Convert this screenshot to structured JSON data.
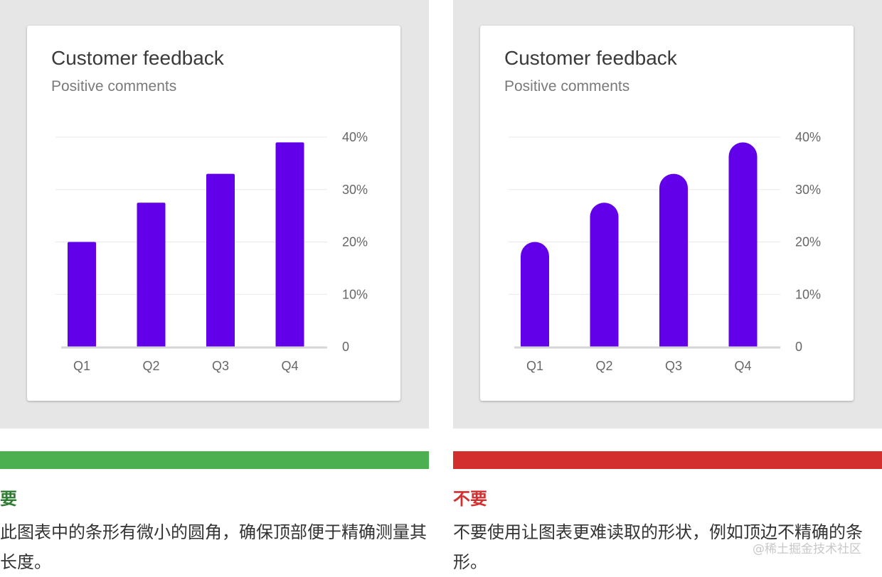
{
  "colors": {
    "panel_bg": "#e6e6e6",
    "bar": "#6200ea",
    "do": "#4caf50",
    "do_text": "#2e7d32",
    "dont": "#d32f2f",
    "dont_text": "#d32f2f"
  },
  "do_example": {
    "verdict": "要",
    "caption": "此图表中的条形有微小的圆角，确保顶部便于精确测量其长度。"
  },
  "dont_example": {
    "verdict": "不要",
    "caption": "不要使用让图表更难读取的形状，例如顶边不精确的条形。"
  },
  "watermark": "@稀土掘金技术社区",
  "chart_data": [
    {
      "type": "bar",
      "title": "Customer feedback",
      "subtitle": "Positive comments",
      "categories": [
        "Q1",
        "Q2",
        "Q3",
        "Q4"
      ],
      "values": [
        20,
        27.5,
        33,
        39
      ],
      "ylim": [
        0,
        40
      ],
      "yticks": [
        "0",
        "10%",
        "20%",
        "30%",
        "40%"
      ],
      "y_axis_side": "right",
      "grid": true,
      "bar_top": "slightly-rounded"
    },
    {
      "type": "bar",
      "title": "Customer feedback",
      "subtitle": "Positive comments",
      "categories": [
        "Q1",
        "Q2",
        "Q3",
        "Q4"
      ],
      "values": [
        20,
        27.5,
        33,
        39
      ],
      "ylim": [
        0,
        40
      ],
      "yticks": [
        "0",
        "10%",
        "20%",
        "30%",
        "40%"
      ],
      "y_axis_side": "right",
      "grid": true,
      "bar_top": "fully-rounded"
    }
  ]
}
